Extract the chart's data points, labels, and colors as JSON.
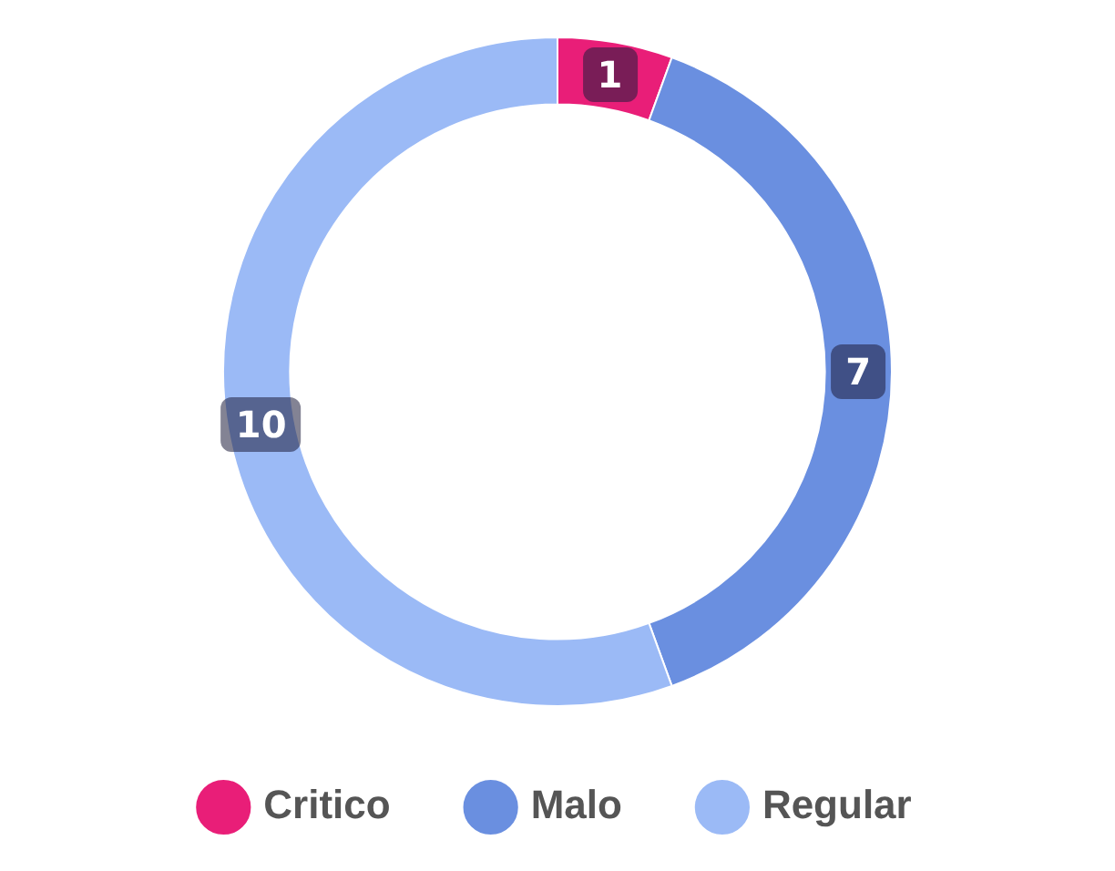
{
  "chart_data": {
    "type": "donut",
    "categories": [
      "Critico",
      "Malo",
      "Regular"
    ],
    "values": [
      1,
      7,
      10
    ],
    "colors": [
      "#e91e78",
      "#6a8fe0",
      "#9bbaf6"
    ],
    "data_labels": true,
    "legend": "bottom"
  }
}
